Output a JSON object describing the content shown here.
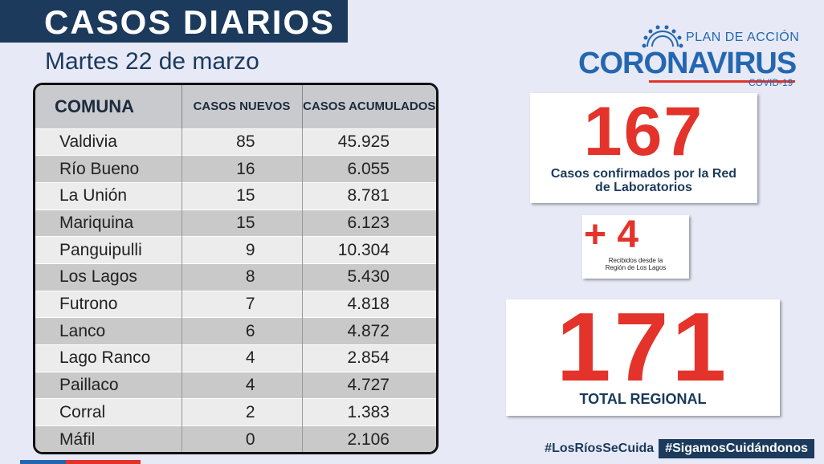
{
  "header": {
    "title": "CASOS DIARIOS",
    "date": "Martes 22 de marzo"
  },
  "table": {
    "headers": [
      "COMUNA",
      "CASOS NUEVOS",
      "CASOS ACUMULADOS"
    ],
    "rows": [
      {
        "comuna": "Valdivia",
        "nuevos": "85",
        "acumulados": "45.925"
      },
      {
        "comuna": "Río Bueno",
        "nuevos": "16",
        "acumulados": "6.055"
      },
      {
        "comuna": "La Unión",
        "nuevos": "15",
        "acumulados": "8.781"
      },
      {
        "comuna": "Mariquina",
        "nuevos": "15",
        "acumulados": "6.123"
      },
      {
        "comuna": "Panguipulli",
        "nuevos": "9",
        "acumulados": "10.304"
      },
      {
        "comuna": "Los Lagos",
        "nuevos": "8",
        "acumulados": "5.430"
      },
      {
        "comuna": "Futrono",
        "nuevos": "7",
        "acumulados": "4.818"
      },
      {
        "comuna": "Lanco",
        "nuevos": "6",
        "acumulados": "4.872"
      },
      {
        "comuna": "Lago Ranco",
        "nuevos": "4",
        "acumulados": "2.854"
      },
      {
        "comuna": "Paillaco",
        "nuevos": "4",
        "acumulados": "4.727"
      },
      {
        "comuna": "Corral",
        "nuevos": "2",
        "acumulados": "1.383"
      },
      {
        "comuna": "Máfil",
        "nuevos": "0",
        "acumulados": "2.106"
      }
    ]
  },
  "logo": {
    "plan": "PLAN DE ACCIÓN",
    "name": "CORONAVIRUS",
    "sub": "COVID-19",
    "icon": "virus-sun-icon"
  },
  "cards": {
    "confirmed": {
      "value": "167",
      "label": "Casos confirmados  por la Red de Laboratorios"
    },
    "received": {
      "value": "+ 4",
      "label": "Recibidos desde la Región de Los Lagos"
    },
    "total": {
      "value": "171",
      "label": "TOTAL REGIONAL"
    }
  },
  "footer": {
    "hashtag1": "#LosRíosSeCuida",
    "hashtag2": "#SigamosCuidándonos"
  },
  "colors": {
    "navy": "#1b3a5c",
    "blue": "#2467b0",
    "red": "#e3332a",
    "background": "#e7e9f6"
  }
}
